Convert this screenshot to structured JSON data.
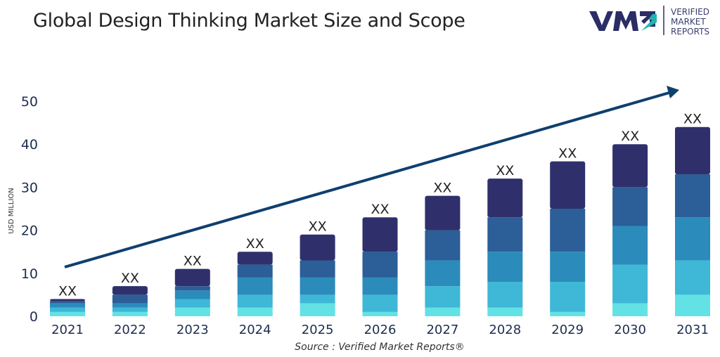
{
  "title": "Global Design Thinking Market Size and Scope",
  "logo": {
    "mark": "VMR",
    "lines": [
      "VERIFIED",
      "MARKET",
      "REPORTS"
    ],
    "colors": {
      "dark": "#2b2d66",
      "accent": "#1fb5b0"
    }
  },
  "source": "Source :  Verified Market Reports®",
  "chart_data": {
    "type": "bar",
    "stacked": true,
    "title": "Global Design Thinking Market Size and Scope",
    "xlabel": "",
    "ylabel": "USD MILLION",
    "ylim": [
      0,
      50
    ],
    "yticks": [
      0,
      10,
      20,
      30,
      40,
      50
    ],
    "grid": false,
    "categories": [
      "2021",
      "2022",
      "2023",
      "2024",
      "2025",
      "2026",
      "2027",
      "2028",
      "2029",
      "2030",
      "2031"
    ],
    "series": [
      {
        "color": "#63e2e6",
        "values": [
          1,
          1,
          2,
          2,
          3,
          1,
          2,
          2,
          1,
          3,
          5
        ]
      },
      {
        "color": "#3fb7d7",
        "values": [
          1,
          1,
          2,
          3,
          2,
          4,
          5,
          6,
          7,
          9,
          8
        ]
      },
      {
        "color": "#2b8bbb",
        "values": [
          1,
          1,
          2,
          4,
          4,
          4,
          6,
          7,
          7,
          9,
          10
        ]
      },
      {
        "color": "#2c5e98",
        "values": [
          0.5,
          2,
          1,
          3,
          4,
          6,
          7,
          8,
          10,
          9,
          10
        ]
      },
      {
        "color": "#2f306b",
        "values": [
          0.5,
          2,
          4,
          3,
          6,
          8,
          8,
          9,
          11,
          10,
          11
        ]
      }
    ],
    "data_labels": [
      "XX",
      "XX",
      "XX",
      "XX",
      "XX",
      "XX",
      "XX",
      "XX",
      "XX",
      "XX",
      "XX"
    ],
    "trend_arrow": {
      "color": "#0f3f6e",
      "direction": "up-right"
    }
  }
}
